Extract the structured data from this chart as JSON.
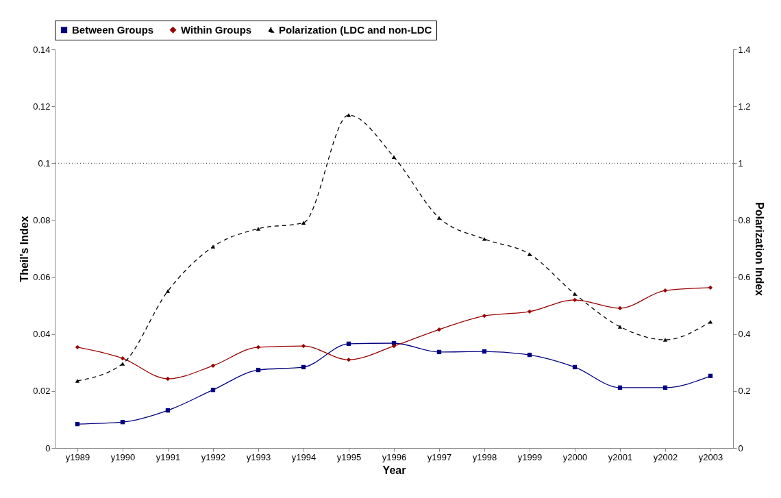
{
  "chart_data": {
    "type": "line",
    "xlabel": "Year",
    "ylabel": "Theil's Index",
    "y2label": "Polarization Index",
    "categories": [
      "y1989",
      "y1990",
      "y1991",
      "y1992",
      "y1993",
      "y1994",
      "y1995",
      "y1996",
      "y1997",
      "y1998",
      "y1999",
      "y2000",
      "y2001",
      "y2002",
      "y2003"
    ],
    "series": [
      {
        "name": "Between Groups",
        "color": "#000080",
        "marker": "square",
        "line_style": "solid",
        "values": [
          0.0084,
          0.0091,
          0.0132,
          0.0204,
          0.0274,
          0.0284,
          0.0366,
          0.0368,
          0.0337,
          0.0339,
          0.0327,
          0.0284,
          0.0212,
          0.0212,
          0.0253
        ]
      },
      {
        "name": "Within Groups",
        "color": "#990000",
        "marker": "diamond",
        "line_style": "solid",
        "values": [
          0.0354,
          0.0315,
          0.0243,
          0.0289,
          0.0354,
          0.0358,
          0.031,
          0.0358,
          0.0416,
          0.0464,
          0.0479,
          0.052,
          0.0491,
          0.0553,
          0.0563
        ]
      },
      {
        "name": "Polarization (LDC and non-LDC",
        "color": "#000000",
        "marker": "triangle",
        "line_style": "dashed",
        "axis": "y2",
        "values": [
          0.236,
          0.296,
          0.551,
          0.707,
          0.77,
          0.791,
          1.169,
          1.022,
          0.808,
          0.734,
          0.681,
          0.541,
          0.426,
          0.38,
          0.443
        ]
      }
    ],
    "ylim": [
      0,
      0.14
    ],
    "yticks": [
      0,
      0.02,
      0.04,
      0.06,
      0.08,
      0.1,
      0.12,
      0.14
    ],
    "y2lim": [
      0,
      1.4
    ],
    "y2ticks": [
      0,
      0.2,
      0.4,
      0.6,
      0.8,
      1,
      1.2,
      1.4
    ],
    "ref_lines": [
      {
        "axis": "y",
        "value": 0.1,
        "line_style": "dotted",
        "color": "#000000"
      }
    ],
    "legend": "top",
    "grid": false
  }
}
